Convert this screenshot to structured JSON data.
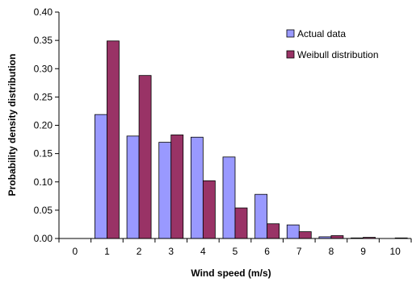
{
  "chart_data": {
    "type": "bar",
    "title": "",
    "xlabel": "Wind speed (m/s)",
    "ylabel": "Probability density distribution",
    "categories": [
      "0",
      "1",
      "2",
      "3",
      "4",
      "5",
      "6",
      "7",
      "8",
      "9",
      "10"
    ],
    "series": [
      {
        "name": "Actual data",
        "color": "#9999ff",
        "values": [
          0,
          0.219,
          0.181,
          0.17,
          0.179,
          0.144,
          0.078,
          0.024,
          0.003,
          0.001,
          0
        ]
      },
      {
        "name": "Weibull distribution",
        "color": "#993366",
        "values": [
          0,
          0.349,
          0.288,
          0.183,
          0.102,
          0.054,
          0.026,
          0.012,
          0.005,
          0.002,
          0.001
        ]
      }
    ],
    "ylim": [
      0,
      0.4
    ],
    "yticks": [
      "0.00",
      "0.05",
      "0.10",
      "0.15",
      "0.20",
      "0.25",
      "0.30",
      "0.35",
      "0.40"
    ],
    "grid": false,
    "legend": "top-right"
  }
}
